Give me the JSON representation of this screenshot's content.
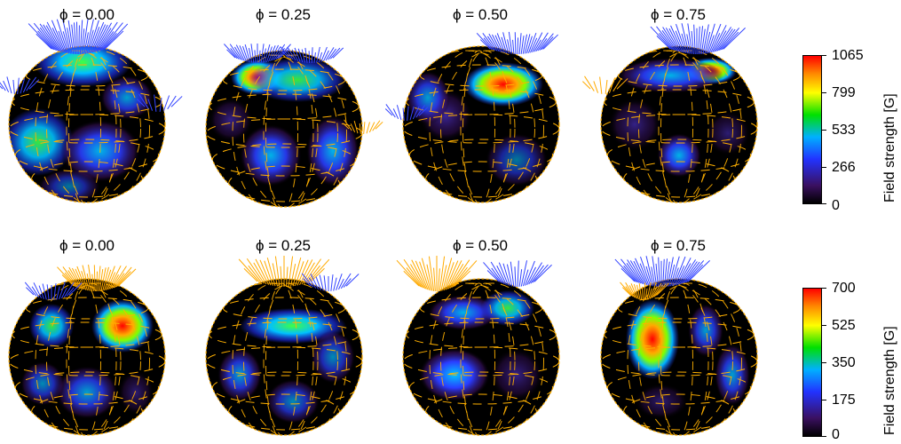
{
  "rows": [
    {
      "phases": [
        "ϕ = 0.00",
        "ϕ = 0.25",
        "ϕ = 0.50",
        "ϕ = 0.75"
      ],
      "colorbar": {
        "title": "Field strength [G]",
        "ticks": [
          "1065",
          "799",
          "533",
          "266",
          "0"
        ]
      }
    },
    {
      "phases": [
        "ϕ = 0.00",
        "ϕ = 0.25",
        "ϕ = 0.50",
        "ϕ = 0.75"
      ],
      "colorbar": {
        "title": "Field strength [G]",
        "ticks": [
          "700",
          "525",
          "350",
          "175",
          "0"
        ]
      }
    }
  ],
  "colors": {
    "grid": "#ffb000",
    "radial_vectors": "#3344ff",
    "inward_vectors": "#ffaa00",
    "background": "#000000",
    "colormap": [
      "#000000",
      "#3a1060",
      "#2233ff",
      "#00b0ff",
      "#00e000",
      "#ffff00",
      "#ff8800",
      "#ff0000"
    ]
  }
}
